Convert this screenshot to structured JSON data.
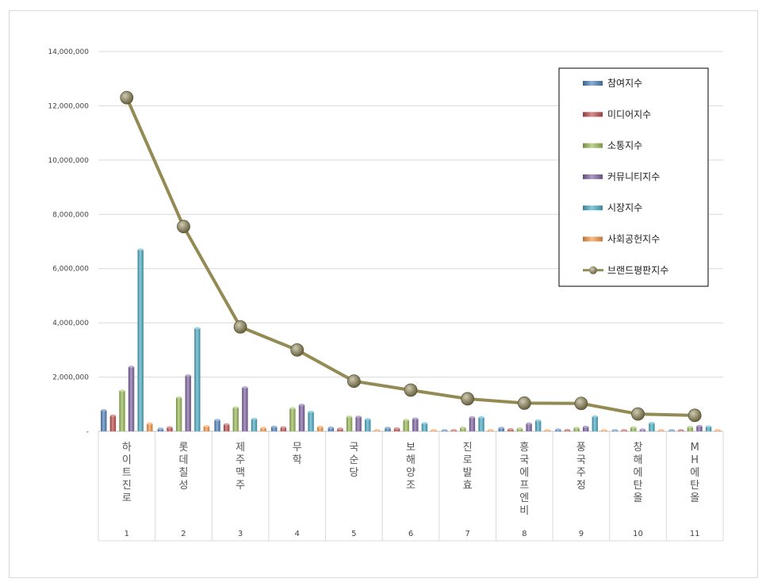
{
  "chart_data": {
    "type": "bar",
    "title": "",
    "xlabel": "",
    "ylabel": "",
    "ylim": [
      0,
      14000000
    ],
    "yticks": [
      "-",
      "2,000,000",
      "4,000,000",
      "6,000,000",
      "8,000,000",
      "10,000,000",
      "12,000,000",
      "14,000,000"
    ],
    "ytick_values": [
      0,
      2000000,
      4000000,
      6000000,
      8000000,
      10000000,
      12000000,
      14000000
    ],
    "grid": true,
    "legend_position": "top-right",
    "categories": [
      "하이트진로",
      "롯데칠성",
      "제주맥주",
      "무학",
      "국순당",
      "보해양조",
      "진로발효",
      "흥국에프엔비",
      "풍국주정",
      "창해에탄올",
      "MH에탄올"
    ],
    "category_index": [
      "1",
      "2",
      "3",
      "4",
      "5",
      "6",
      "7",
      "8",
      "9",
      "10",
      "11"
    ],
    "series": [
      {
        "name": "참여지수",
        "type": "bar",
        "color": "#4f81bd",
        "values": [
          780000,
          100000,
          420000,
          170000,
          140000,
          130000,
          20000,
          130000,
          70000,
          30000,
          30000
        ]
      },
      {
        "name": "미디어지수",
        "type": "bar",
        "color": "#c0504d",
        "values": [
          580000,
          150000,
          260000,
          150000,
          100000,
          110000,
          20000,
          80000,
          50000,
          20000,
          20000
        ]
      },
      {
        "name": "소통지수",
        "type": "bar",
        "color": "#9bbb59",
        "values": [
          1500000,
          1250000,
          880000,
          850000,
          540000,
          420000,
          140000,
          110000,
          130000,
          150000,
          160000
        ]
      },
      {
        "name": "커뮤니티지수",
        "type": "bar",
        "color": "#8064a2",
        "values": [
          2380000,
          2060000,
          1620000,
          980000,
          540000,
          470000,
          520000,
          290000,
          170000,
          70000,
          200000
        ]
      },
      {
        "name": "시장지수",
        "type": "bar",
        "color": "#4bacc6",
        "values": [
          6700000,
          3800000,
          460000,
          720000,
          450000,
          300000,
          520000,
          400000,
          550000,
          310000,
          180000
        ]
      },
      {
        "name": "사회공헌지수",
        "type": "bar",
        "color": "#f79646",
        "values": [
          290000,
          190000,
          130000,
          170000,
          30000,
          30000,
          20000,
          20000,
          20000,
          20000,
          20000
        ]
      },
      {
        "name": "브랜드평판지수",
        "type": "line",
        "color": "#948a54",
        "values": [
          12300000,
          7550000,
          3850000,
          3000000,
          1850000,
          1520000,
          1200000,
          1040000,
          1030000,
          640000,
          590000
        ]
      }
    ]
  }
}
